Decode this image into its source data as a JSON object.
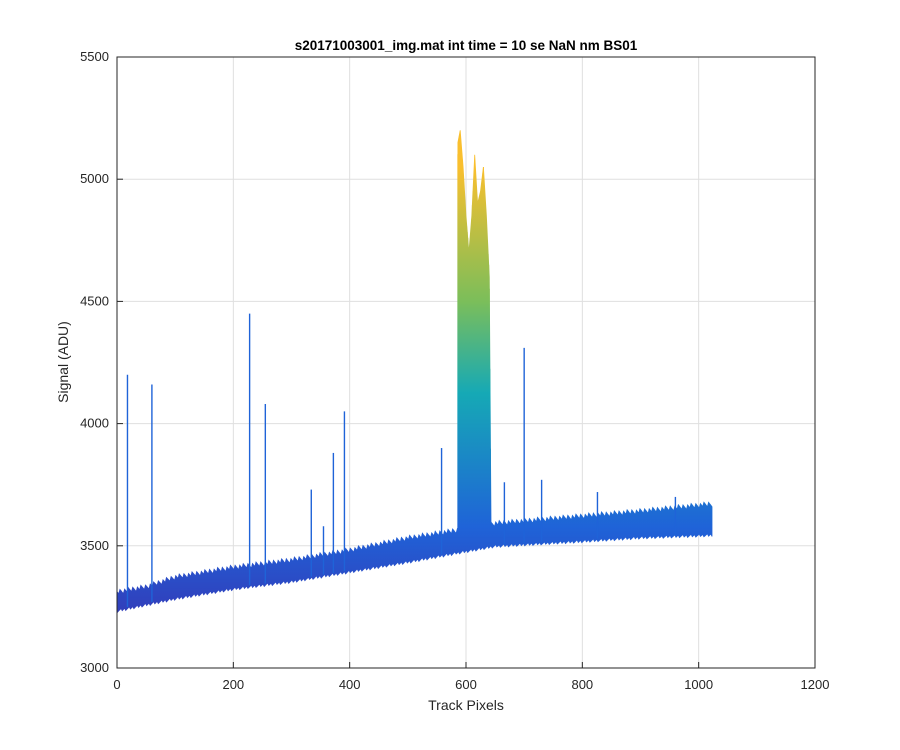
{
  "chart_data": {
    "type": "area",
    "title": "s20171003001_img.mat int time = 10 se  NaN nm BS01",
    "xlabel": "Track Pixels",
    "ylabel": "Signal (ADU)",
    "xlim": [
      0,
      1200
    ],
    "ylim": [
      3000,
      5500
    ],
    "xticks": [
      0,
      200,
      400,
      600,
      800,
      1000,
      1200
    ],
    "yticks": [
      3000,
      3500,
      4000,
      4500,
      5000,
      5500
    ],
    "grid": true,
    "legend": "none",
    "colormap": "parula",
    "colors": {
      "low": "#3e26a8",
      "mid_low": "#1f63d8",
      "mid": "#16a9b5",
      "mid_high": "#7bbe5a",
      "high": "#f9bf2e"
    },
    "x_range": [
      1,
      1024
    ],
    "baseline": {
      "x": [
        0,
        50,
        100,
        200,
        300,
        400,
        500,
        580,
        650,
        800,
        900,
        1024
      ],
      "low": [
        3240,
        3265,
        3290,
        3330,
        3360,
        3400,
        3440,
        3475,
        3505,
        3525,
        3540,
        3550
      ],
      "high": [
        3300,
        3320,
        3360,
        3400,
        3430,
        3470,
        3520,
        3550,
        3580,
        3610,
        3630,
        3660
      ]
    },
    "peak_region": {
      "x": [
        586,
        590,
        595,
        600,
        605,
        610,
        615,
        620,
        625,
        630,
        635,
        640,
        643
      ],
      "y": [
        5150,
        5200,
        5050,
        4850,
        4700,
        4850,
        5100,
        4900,
        4950,
        5050,
        4850,
        4600,
        3600
      ]
    },
    "spikes": [
      {
        "x": 18,
        "y": 4200
      },
      {
        "x": 60,
        "y": 4160
      },
      {
        "x": 228,
        "y": 4450
      },
      {
        "x": 255,
        "y": 4080
      },
      {
        "x": 334,
        "y": 3730
      },
      {
        "x": 355,
        "y": 3580
      },
      {
        "x": 372,
        "y": 3880
      },
      {
        "x": 391,
        "y": 4050
      },
      {
        "x": 558,
        "y": 3900
      },
      {
        "x": 666,
        "y": 3760
      },
      {
        "x": 700,
        "y": 4310
      },
      {
        "x": 730,
        "y": 3770
      },
      {
        "x": 826,
        "y": 3720
      },
      {
        "x": 960,
        "y": 3700
      }
    ]
  }
}
